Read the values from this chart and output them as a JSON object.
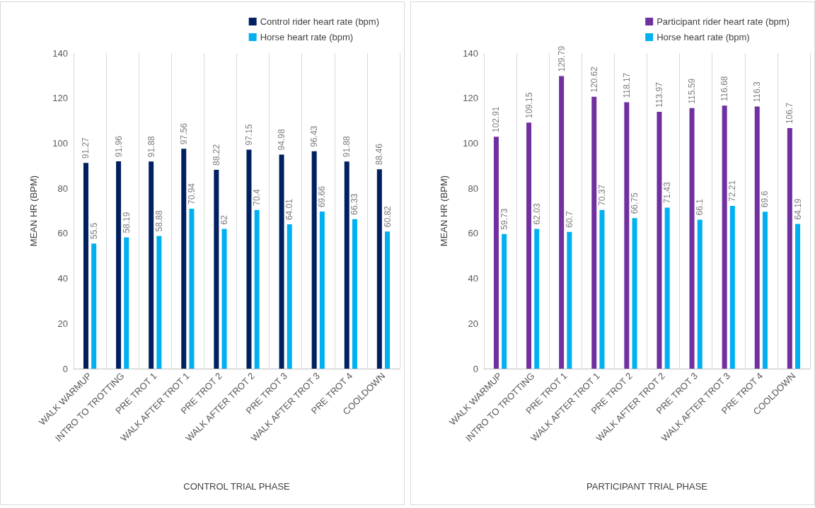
{
  "chart_data": [
    {
      "type": "bar",
      "categories": [
        "WALK WARMUP",
        "INTRO TO TROTTING",
        "PRE TROT 1",
        "WALK AFTER TROT 1",
        "PRE TROT 2",
        "WALK AFTER TROT 2",
        "PRE TROT 3",
        "WALK AFTER TROT 3",
        "PRE TROT 4",
        "COOLDOWN"
      ],
      "series": [
        {
          "name": "Control rider heart rate (bpm)",
          "color": "#002060",
          "values": [
            91.27,
            91.96,
            91.88,
            97.56,
            88.22,
            97.15,
            94.98,
            96.43,
            91.88,
            88.46
          ]
        },
        {
          "name": "Horse heart rate (bpm)",
          "color": "#00b0f0",
          "values": [
            55.5,
            58.19,
            58.88,
            70.94,
            62,
            70.4,
            64.01,
            69.66,
            66.33,
            60.82
          ]
        }
      ],
      "ylim": [
        0,
        140
      ],
      "yticks": [
        0,
        20,
        40,
        60,
        80,
        100,
        120,
        140
      ],
      "grid": "x",
      "legend": "top right",
      "data_labels": true,
      "xlabel": "CONTROL TRIAL PHASE",
      "ylabel": "MEAN HR (BPM)"
    },
    {
      "type": "bar",
      "categories": [
        "WALK WARMUP",
        "INTRO TO TROTTING",
        "PRE TROT 1",
        "WALK AFTER TROT 1",
        "PRE TROT 2",
        "WALK AFTER TROT 2",
        "PRE TROT 3",
        "WALK AFTER TROT 3",
        "PRE TROT 4",
        "COOLDOWN"
      ],
      "series": [
        {
          "name": "Participant rider heart rate (bpm)",
          "color": "#7030a0",
          "values": [
            102.91,
            109.15,
            129.79,
            120.62,
            118.17,
            113.97,
            115.59,
            116.68,
            116.3,
            106.7
          ]
        },
        {
          "name": "Horse heart rate (bpm)",
          "color": "#00b0f0",
          "values": [
            59.73,
            62.03,
            60.7,
            70.37,
            66.75,
            71.43,
            66.1,
            72.21,
            69.6,
            64.19
          ]
        }
      ],
      "ylim": [
        0,
        140
      ],
      "yticks": [
        0,
        20,
        40,
        60,
        80,
        100,
        120,
        140
      ],
      "grid": "x",
      "legend": "top right",
      "data_labels": true,
      "xlabel": "PARTICIPANT TRIAL PHASE",
      "ylabel": "MEAN HR (BPM)"
    }
  ]
}
